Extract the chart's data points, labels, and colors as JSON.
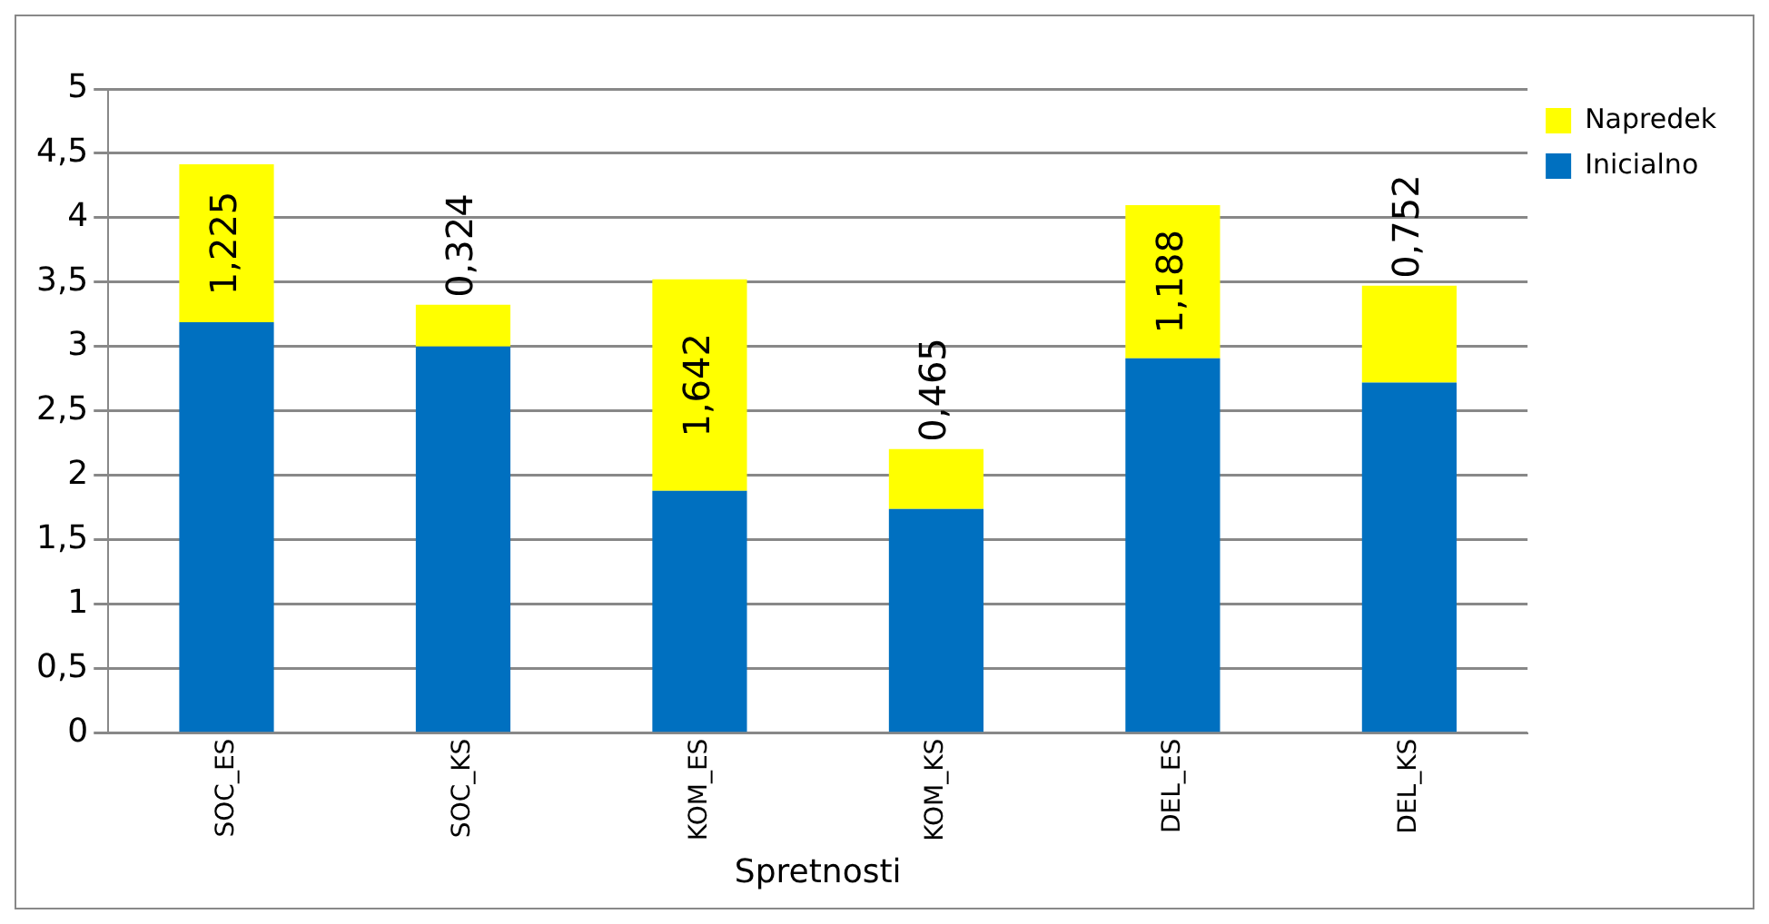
{
  "chart_data": {
    "type": "bar",
    "xlabel": "Spretnosti",
    "categories": [
      "SOC_ES",
      "SOC_KS",
      "KOM_ES",
      "KOM_KS",
      "DEL_ES",
      "DEL_KS"
    ],
    "stacked": true,
    "series": [
      {
        "name": "Inicialno",
        "color": "#0070c0",
        "values": [
          3.19,
          3.0,
          1.88,
          1.74,
          2.91,
          2.72
        ]
      },
      {
        "name": "Napredek",
        "color": "#ffff00",
        "values": [
          1.225,
          0.324,
          1.642,
          0.465,
          1.188,
          0.752
        ],
        "value_labels": [
          "1,225",
          "0,324",
          "1,642",
          "0,465",
          "1,188",
          "0,752"
        ]
      }
    ],
    "ylim": [
      0,
      5
    ],
    "yticks": [
      0,
      {
        "value": 0.5,
        "label": "0,5"
      },
      1,
      {
        "value": 1.5,
        "label": "1,5"
      },
      2,
      {
        "value": 2.5,
        "label": "2,5"
      },
      3,
      {
        "value": 3.5,
        "label": "3,5"
      },
      4,
      {
        "value": 4.5,
        "label": "4,5"
      },
      5
    ],
    "grid": "y",
    "legend": "top right"
  }
}
